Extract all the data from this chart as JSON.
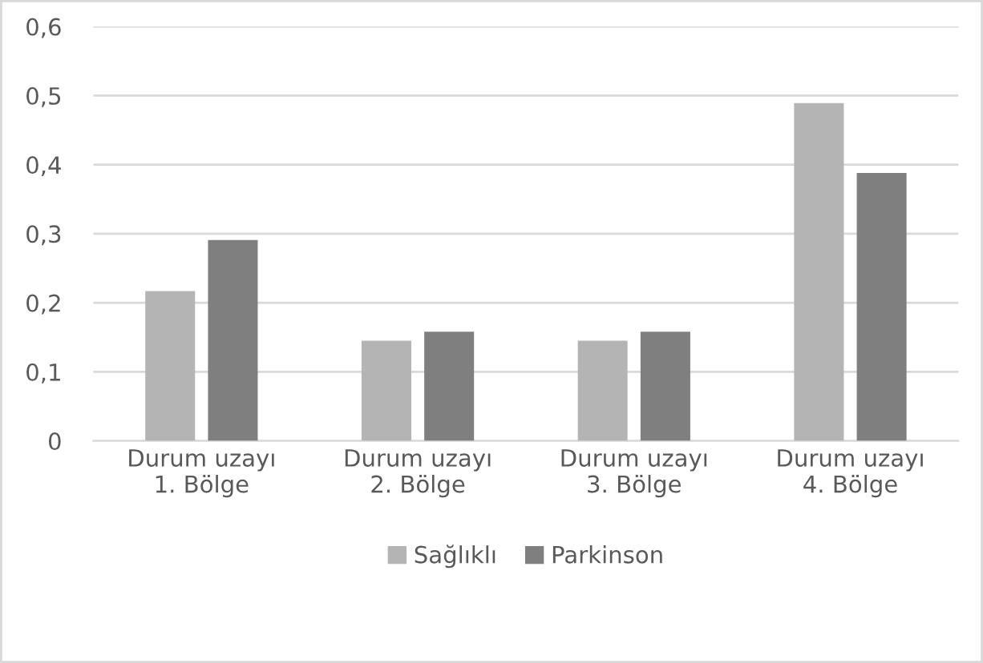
{
  "chart_data": {
    "type": "bar",
    "categories": [
      "Durum uzayı\n1. Bölge",
      "Durum uzayı\n2. Bölge",
      "Durum uzayı\n3. Bölge",
      "Durum uzayı\n4. Bölge"
    ],
    "series": [
      {
        "name": "Sağlıklı",
        "color": "#b4b4b4",
        "values": [
          0.217,
          0.145,
          0.145,
          0.489
        ]
      },
      {
        "name": "Parkinson",
        "color": "#7f7f7f",
        "values": [
          0.291,
          0.158,
          0.158,
          0.388
        ]
      }
    ],
    "ylim": [
      0,
      0.6
    ],
    "yticks": [
      0,
      {
        "value": 0.1,
        "label": "0,1"
      },
      {
        "value": 0.2,
        "label": "0,2"
      },
      {
        "value": 0.3,
        "label": "0,3"
      },
      {
        "value": 0.4,
        "label": "0,4"
      },
      {
        "value": 0.5,
        "label": "0,5"
      },
      {
        "value": 0.6,
        "label": "0,6"
      }
    ],
    "grid": "y",
    "legend": "bottom"
  }
}
